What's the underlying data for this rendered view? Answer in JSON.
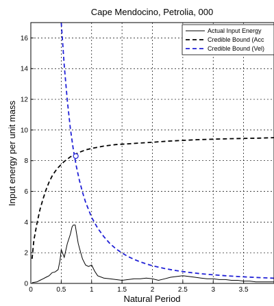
{
  "chart_data": {
    "type": "line",
    "title": "Cape Mendocino, Petrolia, 000",
    "xlabel": "Natural Period",
    "ylabel": "Input energy per unit mass",
    "xlim": [
      0,
      4
    ],
    "ylim": [
      0,
      17
    ],
    "xticks": [
      0,
      0.5,
      1,
      1.5,
      2,
      2.5,
      3,
      3.5
    ],
    "yticks": [
      0,
      2,
      4,
      6,
      8,
      10,
      12,
      14,
      16
    ],
    "xtick_labels": [
      "0",
      "0.5",
      "1",
      "1.5",
      "2",
      "2.5",
      "3",
      "3.5"
    ],
    "ytick_labels": [
      "0",
      "2",
      "4",
      "6",
      "8",
      "10",
      "12",
      "14",
      "16"
    ],
    "grid": true,
    "legend_position": "top-right",
    "series": [
      {
        "name": "Actual Input Energy",
        "color": "#000000",
        "style": "solid",
        "x": [
          0.02,
          0.1,
          0.15,
          0.2,
          0.25,
          0.3,
          0.35,
          0.4,
          0.45,
          0.48,
          0.5,
          0.52,
          0.55,
          0.6,
          0.65,
          0.68,
          0.7,
          0.73,
          0.75,
          0.78,
          0.8,
          0.85,
          0.9,
          0.95,
          1.0,
          1.05,
          1.1,
          1.2,
          1.3,
          1.4,
          1.5,
          1.6,
          1.7,
          1.8,
          1.9,
          2.0,
          2.1,
          2.2,
          2.3,
          2.4,
          2.5,
          2.6,
          2.7,
          2.8,
          2.9,
          3.0,
          3.1,
          3.2,
          3.3,
          3.4,
          3.5,
          3.6,
          3.7,
          3.8,
          3.9,
          4.0
        ],
        "y": [
          0.05,
          0.1,
          0.2,
          0.3,
          0.4,
          0.5,
          0.7,
          0.75,
          0.9,
          1.5,
          2.2,
          2.0,
          1.7,
          2.6,
          3.2,
          3.7,
          3.8,
          3.8,
          3.3,
          2.6,
          2.3,
          1.6,
          1.2,
          1.1,
          1.2,
          0.8,
          0.5,
          0.35,
          0.3,
          0.25,
          0.2,
          0.25,
          0.3,
          0.3,
          0.35,
          0.3,
          0.2,
          0.3,
          0.4,
          0.45,
          0.5,
          0.45,
          0.4,
          0.35,
          0.3,
          0.3,
          0.25,
          0.25,
          0.2,
          0.2,
          0.15,
          0.15,
          0.1,
          0.1,
          0.1,
          0.1
        ]
      },
      {
        "name": "Credible Bound (Acc",
        "color": "#000000",
        "style": "dashed",
        "x": [
          0.02,
          0.05,
          0.1,
          0.15,
          0.2,
          0.25,
          0.3,
          0.35,
          0.4,
          0.45,
          0.5,
          0.55,
          0.6,
          0.65,
          0.7,
          0.75,
          0.8,
          0.9,
          1.0,
          1.2,
          1.4,
          1.6,
          1.8,
          2.0,
          2.25,
          2.5,
          2.75,
          3.0,
          3.25,
          3.5,
          3.75,
          4.0
        ],
        "y": [
          1.6,
          2.8,
          3.9,
          4.8,
          5.5,
          6.1,
          6.6,
          7.0,
          7.3,
          7.55,
          7.75,
          7.95,
          8.1,
          8.25,
          8.35,
          8.45,
          8.55,
          8.7,
          8.8,
          8.95,
          9.05,
          9.1,
          9.15,
          9.2,
          9.27,
          9.32,
          9.37,
          9.4,
          9.43,
          9.45,
          9.47,
          9.5
        ]
      },
      {
        "name": "Credible Bound (Vel)",
        "color": "#1f1fd6",
        "style": "dashed",
        "x": [
          0.5,
          0.55,
          0.6,
          0.65,
          0.7,
          0.75,
          0.8,
          0.85,
          0.9,
          1.0,
          1.1,
          1.2,
          1.3,
          1.4,
          1.5,
          1.6,
          1.7,
          1.8,
          1.9,
          2.0,
          2.2,
          2.4,
          2.6,
          2.8,
          3.0,
          3.2,
          3.4,
          3.6,
          3.8,
          4.0
        ],
        "y": [
          17.0,
          14.2,
          11.9,
          10.1,
          8.7,
          7.6,
          6.7,
          5.95,
          5.3,
          4.3,
          3.6,
          3.05,
          2.6,
          2.25,
          1.98,
          1.75,
          1.56,
          1.4,
          1.27,
          1.15,
          0.97,
          0.83,
          0.72,
          0.63,
          0.56,
          0.5,
          0.45,
          0.41,
          0.37,
          0.34
        ]
      }
    ],
    "annotations": [
      {
        "type": "marker",
        "shape": "circle",
        "x": 0.74,
        "y": 8.3,
        "color": "#1f1fd6"
      }
    ]
  }
}
